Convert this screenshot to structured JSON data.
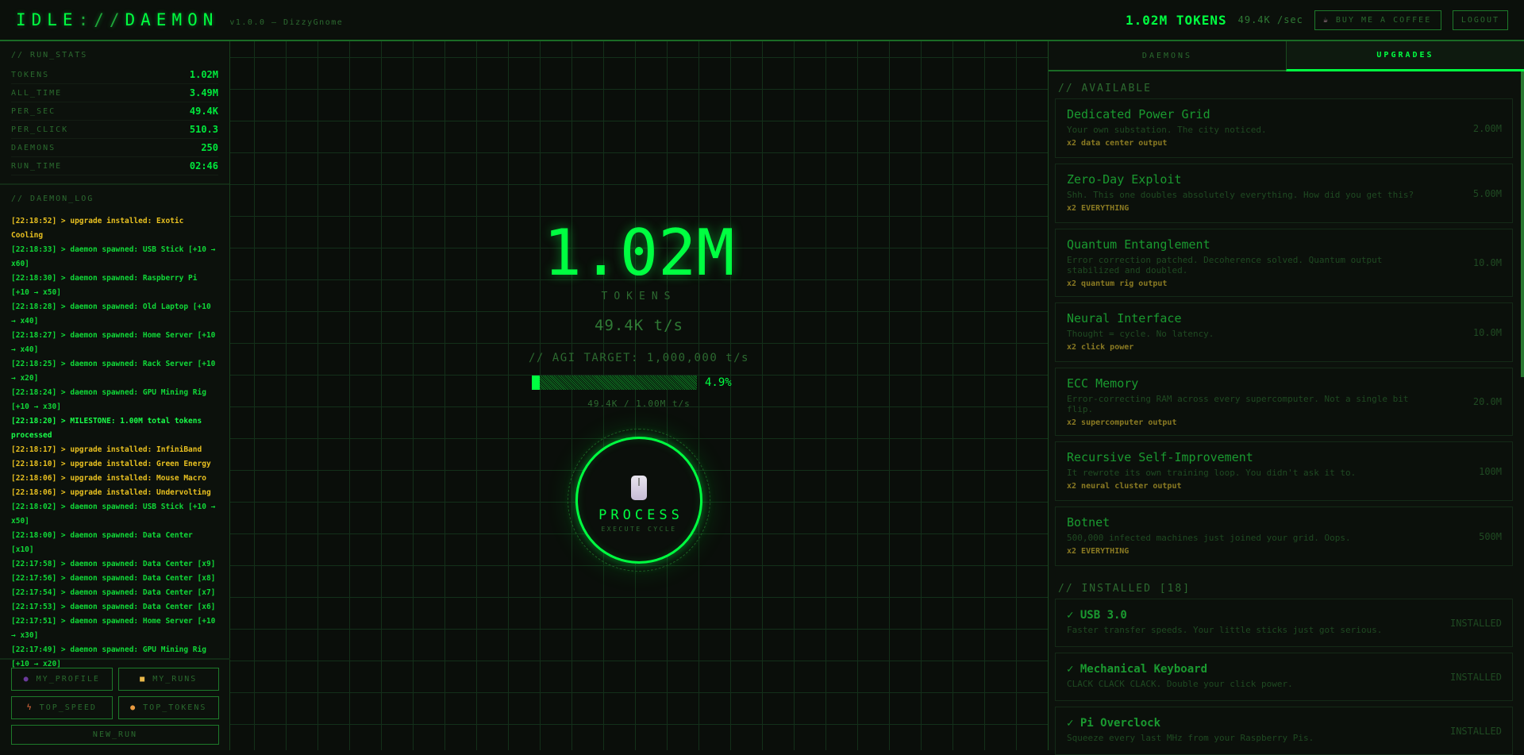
{
  "header": {
    "logo_a": "IDLE",
    "logo_sep": "://",
    "logo_b": "DAEMON",
    "version": "v1.0.0 — DizzyGnome",
    "tokens": "1.02M TOKENS",
    "per_sec": "49.4K /sec",
    "coffee": "BUY ME A COFFEE",
    "logout": "LOGOUT"
  },
  "run_stats": {
    "title": "// RUN_STATS",
    "rows": [
      {
        "k": "TOKENS",
        "v": "1.02M"
      },
      {
        "k": "ALL_TIME",
        "v": "3.49M"
      },
      {
        "k": "PER_SEC",
        "v": "49.4K"
      },
      {
        "k": "PER_CLICK",
        "v": "510.3"
      },
      {
        "k": "DAEMONS",
        "v": "250"
      },
      {
        "k": "RUN_TIME",
        "v": "02:46"
      }
    ]
  },
  "log": {
    "title": "// DAEMON_LOG",
    "entries": [
      {
        "type": "upgrade",
        "text": "[22:18:52] > upgrade installed: Exotic Cooling"
      },
      {
        "type": "daemon",
        "text": "[22:18:33] > daemon spawned: USB Stick [+10 → x60]"
      },
      {
        "type": "daemon",
        "text": "[22:18:30] > daemon spawned: Raspberry Pi [+10 → x50]"
      },
      {
        "type": "daemon",
        "text": "[22:18:28] > daemon spawned: Old Laptop [+10 → x40]"
      },
      {
        "type": "daemon",
        "text": "[22:18:27] > daemon spawned: Home Server [+10 → x40]"
      },
      {
        "type": "daemon",
        "text": "[22:18:25] > daemon spawned: Rack Server [+10 → x20]"
      },
      {
        "type": "daemon",
        "text": "[22:18:24] > daemon spawned: GPU Mining Rig [+10 → x30]"
      },
      {
        "type": "milestone",
        "text": "[22:18:20] > MILESTONE: 1.00M total tokens processed"
      },
      {
        "type": "upgrade",
        "text": "[22:18:17] > upgrade installed: InfiniBand"
      },
      {
        "type": "upgrade",
        "text": "[22:18:10] > upgrade installed: Green Energy"
      },
      {
        "type": "upgrade",
        "text": "[22:18:06] > upgrade installed: Mouse Macro"
      },
      {
        "type": "upgrade",
        "text": "[22:18:06] > upgrade installed: Undervolting"
      },
      {
        "type": "daemon",
        "text": "[22:18:02] > daemon spawned: USB Stick [+10 → x50]"
      },
      {
        "type": "daemon",
        "text": "[22:18:00] > daemon spawned: Data Center [x10]"
      },
      {
        "type": "daemon",
        "text": "[22:17:58] > daemon spawned: Data Center [x9]"
      },
      {
        "type": "daemon",
        "text": "[22:17:56] > daemon spawned: Data Center [x8]"
      },
      {
        "type": "daemon",
        "text": "[22:17:54] > daemon spawned: Data Center [x7]"
      },
      {
        "type": "daemon",
        "text": "[22:17:53] > daemon spawned: Data Center [x6]"
      },
      {
        "type": "daemon",
        "text": "[22:17:51] > daemon spawned: Home Server [+10 → x30]"
      },
      {
        "type": "daemon",
        "text": "[22:17:49] > daemon spawned: GPU Mining Rig [+10 → x20]"
      }
    ]
  },
  "nav": {
    "profile": "MY_PROFILE",
    "runs": "MY_RUNS",
    "speed": "TOP_SPEED",
    "tokens": "TOP_TOKENS",
    "new_run": "NEW_RUN"
  },
  "main": {
    "tokens": "1.02M",
    "tokens_label": "TOKENS",
    "rate": "49.4K t/s",
    "agi_target": "// AGI TARGET: 1,000,000 t/s",
    "progress_percent": 4.9,
    "progress_label": "4.9%",
    "progress_info": "49.4K / 1.00M t/s",
    "process_label": "PROCESS",
    "process_sub": "EXECUTE CYCLE"
  },
  "tabs": {
    "daemons": "DAEMONS",
    "upgrades": "UPGRADES",
    "active": "upgrades"
  },
  "upgrades": {
    "available_title": "// AVAILABLE",
    "available": [
      {
        "name": "Dedicated Power Grid",
        "desc": "Your own substation. The city noticed.",
        "effect": "x2 data center output",
        "cost": "2.00M"
      },
      {
        "name": "Zero-Day Exploit",
        "desc": "Shh. This one doubles absolutely everything. How did you get this?",
        "effect": "x2 EVERYTHING",
        "cost": "5.00M"
      },
      {
        "name": "Quantum Entanglement",
        "desc": "Error correction patched. Decoherence solved. Quantum output stabilized and doubled.",
        "effect": "x2 quantum rig output",
        "cost": "10.0M"
      },
      {
        "name": "Neural Interface",
        "desc": "Thought = cycle. No latency.",
        "effect": "x2 click power",
        "cost": "10.0M"
      },
      {
        "name": "ECC Memory",
        "desc": "Error-correcting RAM across every supercomputer. Not a single bit flip.",
        "effect": "x2 supercomputer output",
        "cost": "20.0M"
      },
      {
        "name": "Recursive Self-Improvement",
        "desc": "It rewrote its own training loop. You didn't ask it to.",
        "effect": "x2 neural cluster output",
        "cost": "100M"
      },
      {
        "name": "Botnet",
        "desc": "500,000 infected machines just joined your grid. Oops.",
        "effect": "x2 EVERYTHING",
        "cost": "500M"
      }
    ],
    "installed_title": "// INSTALLED [18]",
    "installed": [
      {
        "name": "✓ USB 3.0",
        "desc": "Faster transfer speeds. Your little sticks just got serious.",
        "status": "INSTALLED"
      },
      {
        "name": "✓ Mechanical Keyboard",
        "desc": "CLACK CLACK CLACK. Double your click power.",
        "status": "INSTALLED"
      },
      {
        "name": "✓ Pi Overclock",
        "desc": "Squeeze every last MHz from your Raspberry Pis.",
        "status": "INSTALLED"
      }
    ]
  },
  "colors": {
    "accent": "#00ff41",
    "upgrade_log": "#e8c020",
    "effect": "#8a7a22"
  }
}
